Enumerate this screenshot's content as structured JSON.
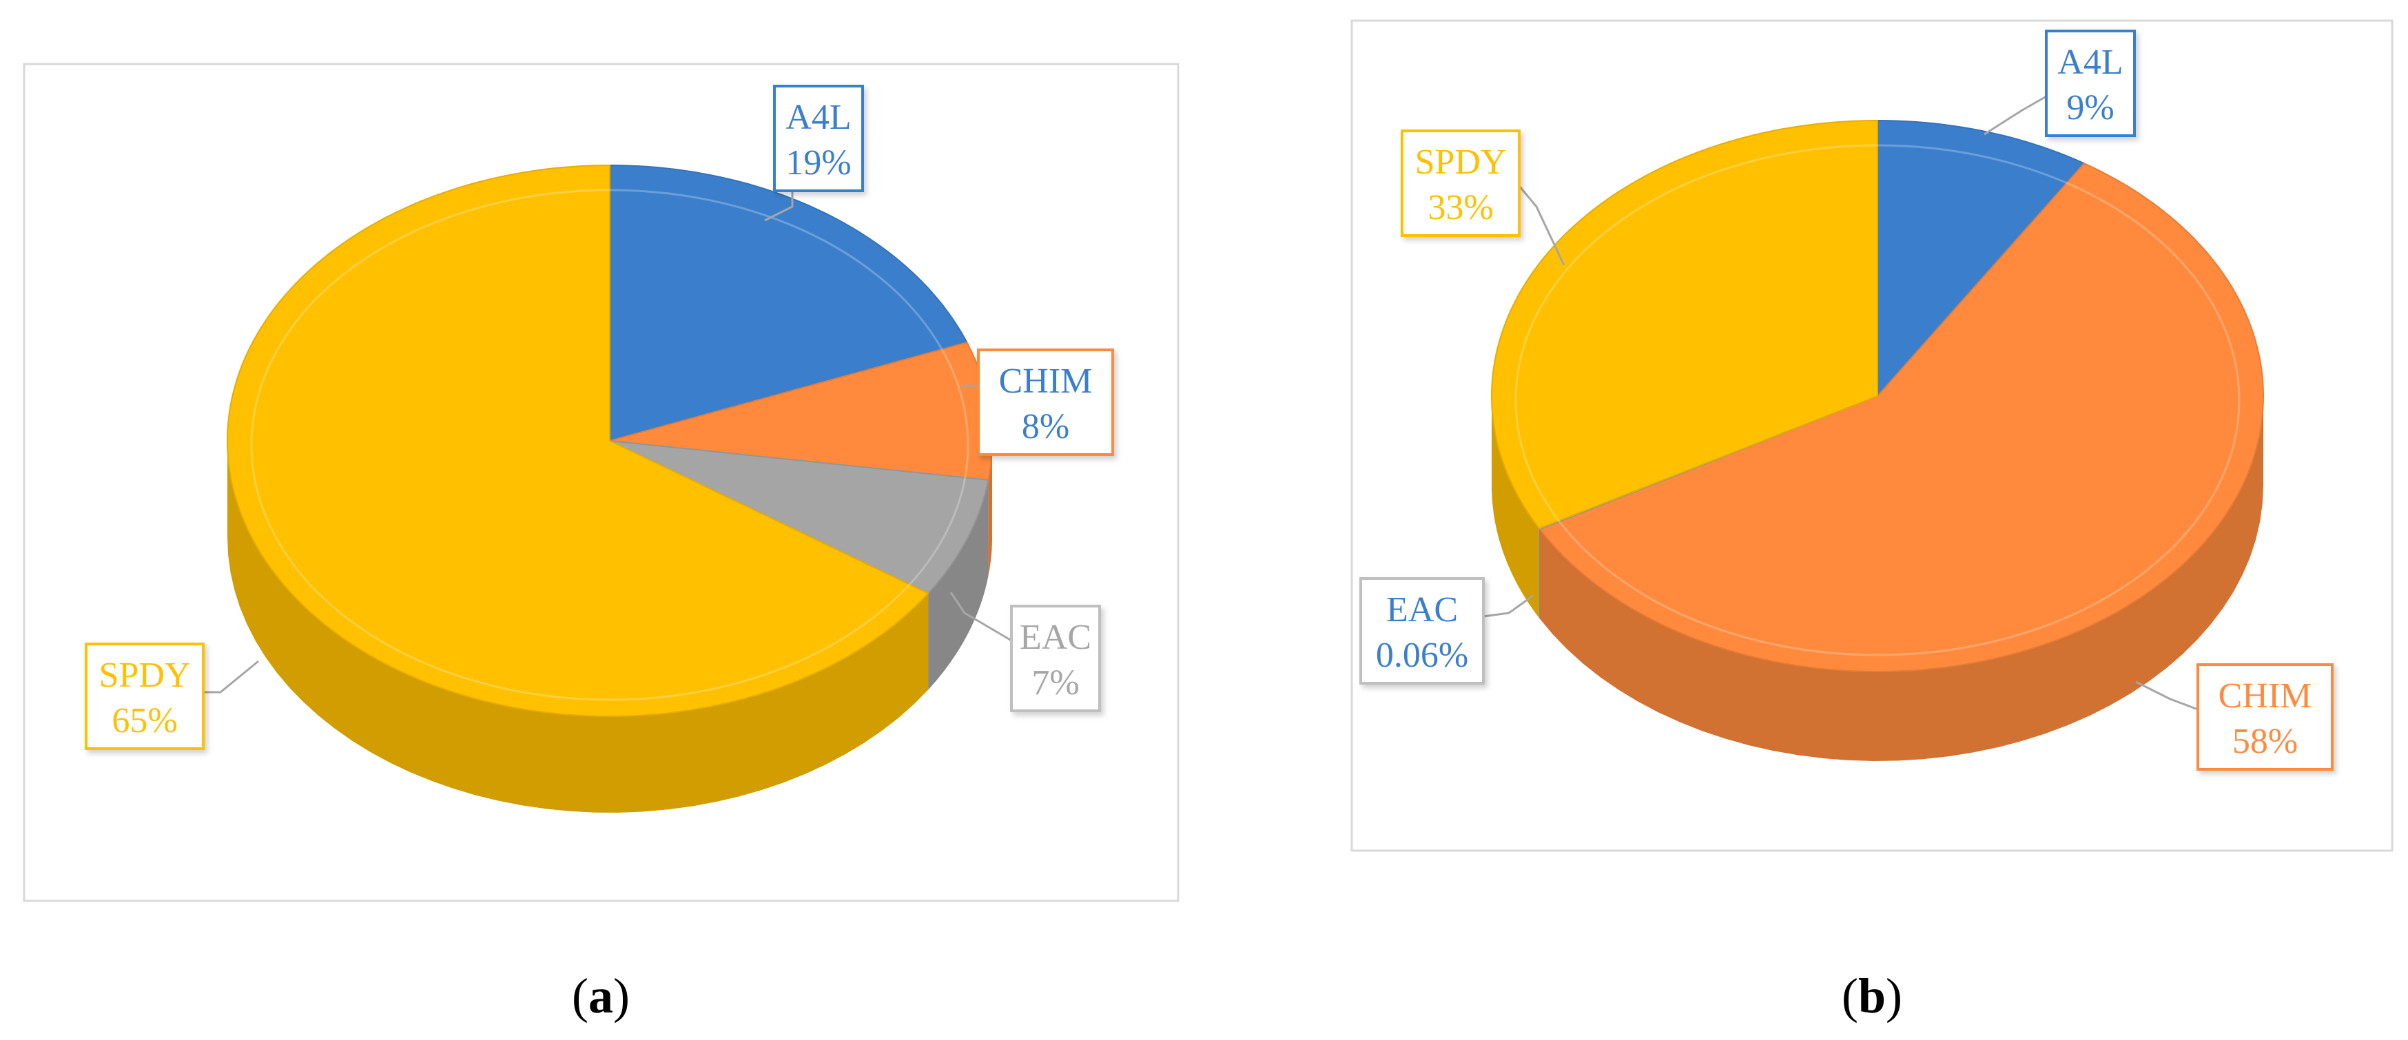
{
  "colors": {
    "A4L": "#3b7fcc",
    "CHIM": "#ff8a3d",
    "EAC": "#a5a5a5",
    "SPDY": "#ffc000",
    "label_blue": "#3b7fcc"
  },
  "chart_data": [
    {
      "type": "pie",
      "panel_label": "a",
      "slices": [
        {
          "name": "A4L",
          "value": 19,
          "pct_label": "19%"
        },
        {
          "name": "CHIM",
          "value": 8,
          "pct_label": "8%"
        },
        {
          "name": "EAC",
          "value": 7,
          "pct_label": "7%"
        },
        {
          "name": "SPDY",
          "value": 65,
          "pct_label": "65%"
        }
      ]
    },
    {
      "type": "pie",
      "panel_label": "b",
      "slices": [
        {
          "name": "A4L",
          "value": 9,
          "pct_label": "9%"
        },
        {
          "name": "CHIM",
          "value": 58,
          "pct_label": "58%"
        },
        {
          "name": "EAC",
          "value": 0.06,
          "pct_label": "0.06%"
        },
        {
          "name": "SPDY",
          "value": 33,
          "pct_label": "33%"
        }
      ]
    }
  ]
}
